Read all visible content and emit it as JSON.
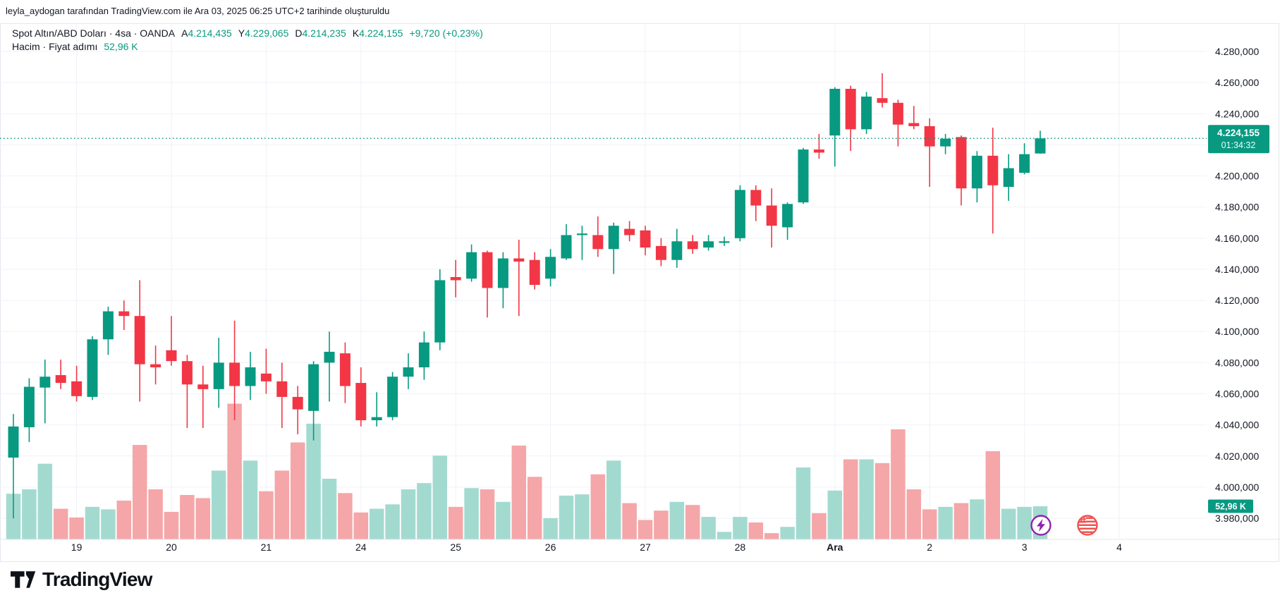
{
  "header": {
    "attribution": "leyla_aydogan tarafından TradingView.com ile Ara 03, 2025 06:25 UTC+2 tarihinde oluşturuldu"
  },
  "legend": {
    "symbol_title": "Spot Altın/ABD Doları · 4sa · OANDA",
    "ohlc": [
      {
        "label": "A",
        "value": "4.214,435"
      },
      {
        "label": "Y",
        "value": "4.229,065"
      },
      {
        "label": "D",
        "value": "4.214,235"
      },
      {
        "label": "K",
        "value": "4.224,155"
      }
    ],
    "change": "+9,720 (+0,23%)",
    "volume_row_title": "Hacim · Fiyat adımı",
    "volume_value": "52,96 K"
  },
  "badges": {
    "price": "4.224,155",
    "countdown": "01:34:32",
    "volume": "52,96 K"
  },
  "footer": {
    "brand": "TradingView"
  },
  "colors": {
    "up": "#089981",
    "down": "#F23645",
    "volume_up": "#a3dad0",
    "volume_down": "#f5a6a8",
    "accent": "#089981",
    "text": "#131722",
    "grid": "#f0f2f8",
    "axis_line": "#e4e7ee"
  },
  "icons": [
    {
      "name": "lightning",
      "color": "#8e24aa"
    },
    {
      "name": "us-flag",
      "color": "#ef5350"
    }
  ],
  "chart_data": {
    "type": "candlestick",
    "title": "Spot Altın/ABD Doları · 4sa · OANDA",
    "legend_position": "top-left",
    "grid": true,
    "last_price": 4224.155,
    "countdown": "01:34:32",
    "last_volume_label": "52,96 K",
    "y_axis": {
      "max": 4280,
      "min": 3980,
      "step": 20,
      "ticks": [
        {
          "value": 4280,
          "label": "4.280,000"
        },
        {
          "value": 4260,
          "label": "4.260,000"
        },
        {
          "value": 4240,
          "label": "4.240,000"
        },
        {
          "value": 4220,
          "label": "4.220,000"
        },
        {
          "value": 4200,
          "label": "4.200,000"
        },
        {
          "value": 4180,
          "label": "4.180,000"
        },
        {
          "value": 4160,
          "label": "4.160,000"
        },
        {
          "value": 4140,
          "label": "4.140,000"
        },
        {
          "value": 4120,
          "label": "4.120,000"
        },
        {
          "value": 4100,
          "label": "4.100,000"
        },
        {
          "value": 4080,
          "label": "4.080,000"
        },
        {
          "value": 4060,
          "label": "4.060,000"
        },
        {
          "value": 4040,
          "label": "4.040,000"
        },
        {
          "value": 4020,
          "label": "4.020,000"
        },
        {
          "value": 4000,
          "label": "4.000,000"
        },
        {
          "value": 3980,
          "label": "3.980,000"
        }
      ]
    },
    "x_ticks": [
      {
        "label": "19",
        "candle": 4
      },
      {
        "label": "20",
        "candle": 10
      },
      {
        "label": "21",
        "candle": 16
      },
      {
        "label": "24",
        "candle": 22
      },
      {
        "label": "25",
        "candle": 28
      },
      {
        "label": "26",
        "candle": 34
      },
      {
        "label": "27",
        "candle": 40
      },
      {
        "label": "28",
        "candle": 46
      },
      {
        "label": "Ara",
        "candle": 52,
        "bold": true
      },
      {
        "label": "2",
        "candle": 58
      },
      {
        "label": "3",
        "candle": 64
      },
      {
        "label": "4",
        "candle": 70
      }
    ],
    "candle_fields": [
      "open",
      "high",
      "low",
      "close",
      "volume_k"
    ],
    "candles": [
      [
        4019,
        4047,
        3980,
        4039,
        73
      ],
      [
        4038.5,
        4070,
        4029,
        4064.5,
        80
      ],
      [
        4064,
        4082,
        4041,
        4071,
        121
      ],
      [
        4072,
        4082,
        4063,
        4067,
        49
      ],
      [
        4068,
        4078,
        4055,
        4058.5,
        35
      ],
      [
        4058,
        4097,
        4056,
        4095,
        52
      ],
      [
        4095,
        4116,
        4085,
        4113,
        48
      ],
      [
        4113,
        4120,
        4101,
        4110,
        62
      ],
      [
        4110,
        4133,
        4055,
        4079,
        151
      ],
      [
        4079,
        4091,
        4066,
        4077,
        80
      ],
      [
        4088,
        4110,
        4078,
        4081,
        44
      ],
      [
        4081,
        4085,
        4038,
        4066,
        71
      ],
      [
        4066,
        4078,
        4038,
        4063,
        66
      ],
      [
        4063,
        4096,
        4051,
        4080,
        110
      ],
      [
        4080,
        4107,
        4043,
        4065,
        217
      ],
      [
        4065,
        4087,
        4056,
        4077,
        126
      ],
      [
        4073,
        4089,
        4060,
        4068,
        77
      ],
      [
        4068,
        4080,
        4038,
        4058,
        110
      ],
      [
        4058,
        4065,
        4034,
        4050,
        155
      ],
      [
        4049,
        4081,
        4030,
        4079,
        185
      ],
      [
        4080,
        4100,
        4055,
        4087,
        97
      ],
      [
        4086,
        4093,
        4054,
        4065,
        74
      ],
      [
        4067,
        4077,
        4039,
        4043,
        43
      ],
      [
        4043,
        4061,
        4039,
        4045,
        49
      ],
      [
        4045,
        4074,
        4043,
        4071,
        56
      ],
      [
        4071,
        4086,
        4063,
        4077,
        80
      ],
      [
        4077,
        4100,
        4069,
        4093,
        90
      ],
      [
        4093,
        4140,
        4088,
        4133,
        134
      ],
      [
        4135,
        4146,
        4122,
        4133,
        52
      ],
      [
        4134,
        4156,
        4132,
        4151,
        82
      ],
      [
        4151,
        4152,
        4109,
        4128,
        80
      ],
      [
        4128,
        4151,
        4115,
        4147,
        60
      ],
      [
        4147,
        4159,
        4110,
        4145,
        150
      ],
      [
        4146,
        4151,
        4127,
        4130,
        100
      ],
      [
        4134,
        4153,
        4129,
        4148,
        34
      ],
      [
        4147,
        4169,
        4146,
        4162,
        70
      ],
      [
        4162,
        4168,
        4146,
        4163,
        72
      ],
      [
        4162,
        4174,
        4148,
        4153,
        104
      ],
      [
        4153,
        4170,
        4137,
        4168,
        126
      ],
      [
        4166,
        4171,
        4158,
        4162,
        58
      ],
      [
        4165,
        4168,
        4149,
        4154,
        31
      ],
      [
        4155,
        4160,
        4142,
        4146,
        46
      ],
      [
        4146,
        4166,
        4141,
        4158,
        60
      ],
      [
        4158,
        4162,
        4150,
        4153,
        55
      ],
      [
        4154,
        4162,
        4152,
        4158,
        36
      ],
      [
        4157,
        4161,
        4155,
        4158,
        12
      ],
      [
        4160,
        4194,
        4158,
        4191,
        36
      ],
      [
        4191,
        4194,
        4171,
        4181,
        27
      ],
      [
        4181,
        4192,
        4154,
        4168,
        10
      ],
      [
        4167,
        4183,
        4159,
        4182,
        20
      ],
      [
        4183,
        4218,
        4182,
        4217,
        115
      ],
      [
        4217,
        4227,
        4211,
        4215,
        42
      ],
      [
        4226,
        4257,
        4206,
        4256,
        78
      ],
      [
        4256,
        4258,
        4216,
        4230,
        128
      ],
      [
        4230,
        4254,
        4227,
        4251,
        128
      ],
      [
        4250,
        4266,
        4244,
        4247,
        122
      ],
      [
        4247,
        4249,
        4219,
        4233,
        176
      ],
      [
        4234,
        4245,
        4230,
        4232,
        80
      ],
      [
        4232,
        4237,
        4193,
        4219,
        48
      ],
      [
        4219,
        4227,
        4214,
        4224,
        52
      ],
      [
        4225,
        4226,
        4181,
        4192,
        58
      ],
      [
        4192,
        4216,
        4183,
        4213,
        64
      ],
      [
        4213,
        4231,
        4163,
        4194,
        141
      ],
      [
        4193,
        4214,
        4184,
        4205,
        49
      ],
      [
        4202,
        4221,
        4201,
        4214,
        52
      ],
      [
        4214.435,
        4229.065,
        4214.235,
        4224.155,
        52.96
      ]
    ]
  }
}
